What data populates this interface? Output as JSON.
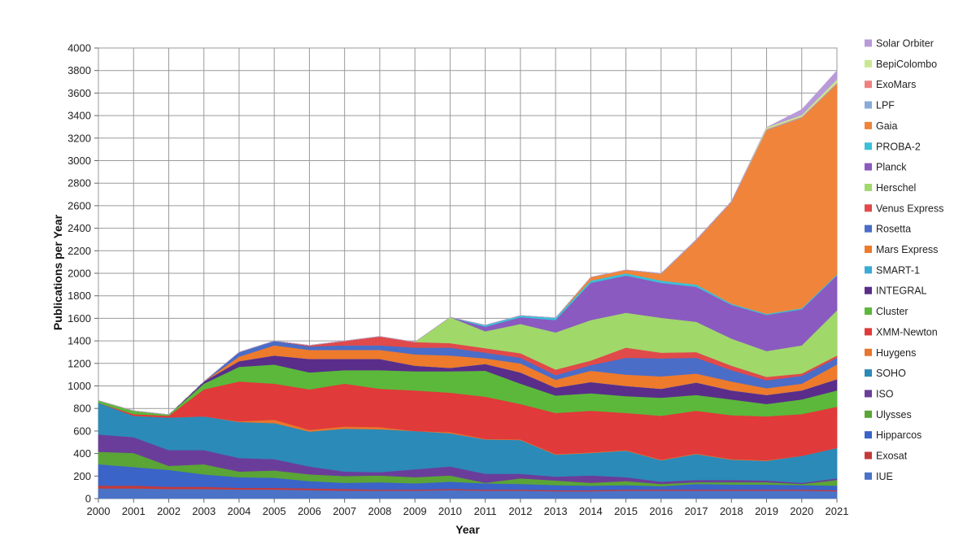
{
  "chart_data": {
    "type": "area",
    "stacked": true,
    "xlabel": "Year",
    "ylabel": "Publications per Year",
    "ylim": [
      0,
      4000
    ],
    "yticks": [
      0,
      200,
      400,
      600,
      800,
      1000,
      1200,
      1400,
      1600,
      1800,
      2000,
      2200,
      2400,
      2600,
      2800,
      3000,
      3200,
      3400,
      3600,
      3800,
      4000
    ],
    "grid": true,
    "legend_position": "right",
    "x": [
      2000,
      2001,
      2002,
      2003,
      2004,
      2005,
      2006,
      2007,
      2008,
      2009,
      2010,
      2011,
      2012,
      2013,
      2014,
      2015,
      2016,
      2017,
      2018,
      2019,
      2020,
      2021
    ],
    "series": [
      {
        "name": "IUE",
        "color": "#4a73c8",
        "values": [
          90,
          90,
          85,
          85,
          80,
          80,
          75,
          70,
          70,
          70,
          75,
          70,
          70,
          65,
          65,
          70,
          70,
          70,
          70,
          70,
          70,
          65
        ]
      },
      {
        "name": "Exosat",
        "color": "#c43a3a",
        "values": [
          25,
          25,
          20,
          20,
          15,
          15,
          15,
          15,
          10,
          10,
          10,
          10,
          10,
          10,
          10,
          10,
          10,
          10,
          10,
          10,
          10,
          10
        ]
      },
      {
        "name": "Hipparcos",
        "color": "#3a64c8",
        "values": [
          190,
          165,
          150,
          110,
          95,
          90,
          65,
          55,
          65,
          55,
          65,
          55,
          50,
          45,
          40,
          40,
          30,
          50,
          45,
          45,
          40,
          40
        ]
      },
      {
        "name": "Ulysses",
        "color": "#5aa536",
        "values": [
          110,
          125,
          35,
          90,
          50,
          65,
          60,
          60,
          60,
          55,
          55,
          5,
          50,
          40,
          25,
          35,
          20,
          15,
          20,
          20,
          10,
          50
        ]
      },
      {
        "name": "ISO",
        "color": "#6b3d9a",
        "values": [
          155,
          140,
          140,
          125,
          120,
          100,
          70,
          40,
          30,
          70,
          80,
          80,
          40,
          35,
          65,
          35,
          20,
          20,
          20,
          15,
          10,
          15
        ]
      },
      {
        "name": "SOHO",
        "color": "#2b8ab8",
        "values": [
          280,
          190,
          290,
          300,
          320,
          320,
          310,
          380,
          380,
          340,
          295,
          305,
          300,
          195,
          200,
          235,
          190,
          230,
          180,
          175,
          240,
          270
        ]
      },
      {
        "name": "Huygens",
        "color": "#e8762c",
        "values": [
          0,
          0,
          0,
          0,
          5,
          30,
          15,
          20,
          20,
          0,
          10,
          5,
          5,
          5,
          5,
          5,
          5,
          5,
          5,
          5,
          0,
          0
        ]
      },
      {
        "name": "XMM-Newton",
        "color": "#e03a3a",
        "values": [
          0,
          15,
          15,
          240,
          355,
          320,
          360,
          380,
          340,
          360,
          350,
          375,
          315,
          365,
          370,
          330,
          390,
          380,
          390,
          390,
          370,
          365
        ]
      },
      {
        "name": "Cluster",
        "color": "#5cb83a",
        "values": [
          20,
          30,
          10,
          50,
          130,
          170,
          150,
          120,
          165,
          170,
          190,
          230,
          180,
          155,
          155,
          150,
          160,
          140,
          140,
          110,
          130,
          145
        ]
      },
      {
        "name": "INTEGRAL",
        "color": "#5a2d8a",
        "values": [
          0,
          0,
          0,
          20,
          50,
          80,
          120,
          100,
          100,
          50,
          30,
          60,
          100,
          70,
          100,
          90,
          80,
          110,
          80,
          80,
          80,
          100
        ]
      },
      {
        "name": "SMART-1",
        "color": "#3aaad8",
        "values": [
          0,
          0,
          0,
          0,
          0,
          0,
          0,
          0,
          0,
          0,
          0,
          0,
          0,
          0,
          0,
          0,
          0,
          0,
          0,
          0,
          0,
          0
        ]
      },
      {
        "name": "Mars Express",
        "color": "#ee7a2c",
        "values": [
          0,
          0,
          0,
          0,
          40,
          90,
          80,
          80,
          80,
          100,
          110,
          50,
          80,
          70,
          100,
          100,
          110,
          80,
          80,
          60,
          60,
          130
        ]
      },
      {
        "name": "Rosetta",
        "color": "#4a6dc8",
        "values": [
          0,
          0,
          0,
          0,
          40,
          40,
          30,
          40,
          40,
          60,
          70,
          50,
          50,
          40,
          50,
          150,
          160,
          140,
          100,
          70,
          70,
          60
        ]
      },
      {
        "name": "Venus Express",
        "color": "#e04a4a",
        "values": [
          0,
          0,
          0,
          0,
          0,
          0,
          10,
          40,
          80,
          50,
          40,
          40,
          40,
          50,
          40,
          90,
          50,
          50,
          40,
          30,
          20,
          20
        ]
      },
      {
        "name": "Herschel",
        "color": "#a0d86a",
        "values": [
          0,
          0,
          0,
          0,
          0,
          0,
          0,
          0,
          0,
          0,
          230,
          150,
          260,
          330,
          360,
          310,
          310,
          270,
          240,
          230,
          250,
          400
        ]
      },
      {
        "name": "Planck",
        "color": "#8a5ac0",
        "values": [
          0,
          0,
          0,
          0,
          0,
          0,
          0,
          0,
          0,
          0,
          0,
          40,
          60,
          110,
          330,
          330,
          310,
          310,
          300,
          320,
          320,
          310
        ]
      },
      {
        "name": "PROBA-2",
        "color": "#3ac0d8",
        "values": [
          0,
          0,
          0,
          0,
          0,
          0,
          0,
          0,
          0,
          0,
          0,
          15,
          15,
          20,
          20,
          20,
          20,
          20,
          10,
          10,
          10,
          10
        ]
      },
      {
        "name": "Gaia",
        "color": "#f0843a",
        "values": [
          0,
          0,
          0,
          0,
          0,
          0,
          0,
          0,
          0,
          0,
          0,
          0,
          0,
          0,
          30,
          30,
          60,
          390,
          900,
          1630,
          1690,
          1690
        ]
      },
      {
        "name": "LPF",
        "color": "#8aaad8",
        "values": [
          0,
          0,
          0,
          0,
          0,
          0,
          0,
          0,
          0,
          0,
          0,
          0,
          0,
          0,
          0,
          0,
          5,
          5,
          5,
          5,
          5,
          5
        ]
      },
      {
        "name": "ExoMars",
        "color": "#f08080",
        "values": [
          0,
          0,
          0,
          0,
          0,
          0,
          0,
          0,
          0,
          0,
          0,
          0,
          0,
          0,
          0,
          0,
          0,
          5,
          5,
          5,
          5,
          5
        ]
      },
      {
        "name": "BepiColombo",
        "color": "#c8e890",
        "values": [
          0,
          0,
          0,
          0,
          0,
          0,
          0,
          0,
          0,
          0,
          0,
          0,
          0,
          0,
          0,
          0,
          0,
          0,
          0,
          15,
          15,
          30
        ]
      },
      {
        "name": "Solar Orbiter",
        "color": "#b89ad8",
        "values": [
          0,
          0,
          0,
          0,
          0,
          0,
          0,
          0,
          0,
          0,
          0,
          0,
          0,
          0,
          0,
          0,
          0,
          0,
          0,
          0,
          50,
          80
        ]
      }
    ]
  }
}
